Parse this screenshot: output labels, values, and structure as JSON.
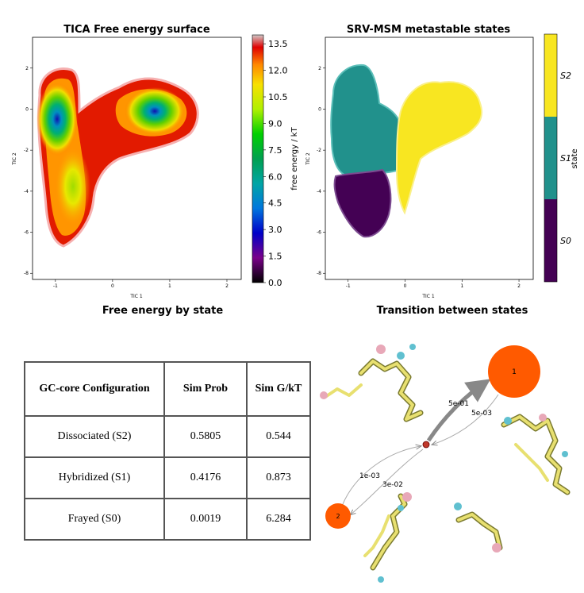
{
  "chart_data": [
    {
      "type": "heatmap",
      "title": "TICA Free energy surface",
      "xlabel": "TIC 1",
      "ylabel": "TIC 2",
      "xlim": [
        -1.4,
        2.25
      ],
      "ylim": [
        -8.3,
        3.5
      ],
      "xticks": [
        -1,
        0,
        1,
        2
      ],
      "yticks": [
        2,
        0,
        -2,
        -4,
        -6,
        -8
      ],
      "colorbar": {
        "label": "free energy / kT",
        "colormap": "nipy_spectral",
        "range": [
          0,
          14
        ],
        "ticks": [
          "13.5",
          "12.0",
          "10.5",
          "9.0",
          "7.5",
          "6.0",
          "4.5",
          "3.0",
          "1.5",
          "0.0"
        ]
      },
      "minima": [
        {
          "x": -1.1,
          "y": 0.0
        },
        {
          "x": 0.95,
          "y": 0.05
        },
        {
          "x": -0.75,
          "y": -3.9
        }
      ]
    },
    {
      "type": "scatter",
      "title": "SRV-MSM metastable states",
      "xlabel": "TIC 1",
      "ylabel": "TIC 2",
      "xlim": [
        -1.4,
        2.25
      ],
      "ylim": [
        -8.3,
        3.5
      ],
      "xticks": [
        -1,
        0,
        1,
        2
      ],
      "yticks": [
        2,
        0,
        -2,
        -4,
        -6,
        -8
      ],
      "colorbar": {
        "label": "state",
        "ticks": [
          "S2",
          "S1",
          "S0"
        ],
        "colors": [
          "#f8e621",
          "#21918c",
          "#440154"
        ]
      }
    },
    {
      "type": "table",
      "title": "Free energy by state",
      "columns": [
        "GC-core Configuration",
        "Sim Prob",
        "Sim G/kT"
      ],
      "rows": [
        [
          "Dissociated (S2)",
          "0.5805",
          "0.544"
        ],
        [
          "Hybridized (S1)",
          "0.4176",
          "0.873"
        ],
        [
          "Frayed (S0)",
          "0.0019",
          "6.284"
        ]
      ]
    },
    {
      "type": "diagram",
      "title": "Transition between states",
      "nodes": [
        {
          "label": "1",
          "color": "#ff5a00"
        },
        {
          "label": "",
          "color": "#c0392b"
        },
        {
          "label": "2",
          "color": "#ff5a00"
        }
      ],
      "edges": [
        {
          "label": "5e-01"
        },
        {
          "label": "5e-03"
        },
        {
          "label": "1e-03"
        },
        {
          "label": "3e-02"
        }
      ]
    }
  ]
}
